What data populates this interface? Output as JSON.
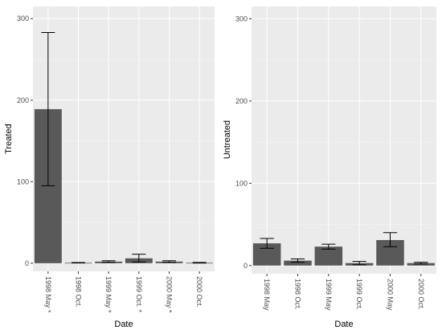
{
  "chart_data": [
    {
      "type": "bar",
      "xlabel": "Date",
      "ylabel": "Treated",
      "categories": [
        "1998 May *",
        "1998 Oct.",
        "1999 May *",
        "1999 Oct. *",
        "2000 May *",
        "2000 Oct."
      ],
      "values": [
        189,
        0.5,
        2,
        6,
        2,
        0.5
      ],
      "error_low": [
        95,
        0.3,
        1,
        1.5,
        1,
        0.2
      ],
      "error_high": [
        283,
        0.8,
        3,
        11,
        3,
        1
      ],
      "ylim": [
        -10,
        315
      ],
      "yticks": [
        0,
        100,
        200,
        300
      ],
      "grid": true,
      "legend": "none",
      "bar_color": "#595959",
      "panel_color": "#ebebeb"
    },
    {
      "type": "bar",
      "xlabel": "Date",
      "ylabel": "Untreated",
      "categories": [
        "1998 May",
        "1998 Oct.",
        "1999 May",
        "1999 Oct.",
        "2000 May",
        "2000 Oct."
      ],
      "values": [
        27,
        6,
        23,
        3,
        31,
        3
      ],
      "error_low": [
        21,
        4,
        20,
        1,
        23,
        2
      ],
      "error_high": [
        33,
        8,
        26,
        5,
        40,
        4
      ],
      "ylim": [
        -10,
        315
      ],
      "yticks": [
        0,
        100,
        200,
        300
      ],
      "grid": true,
      "legend": "none",
      "bar_color": "#595959",
      "panel_color": "#ebebeb"
    }
  ]
}
